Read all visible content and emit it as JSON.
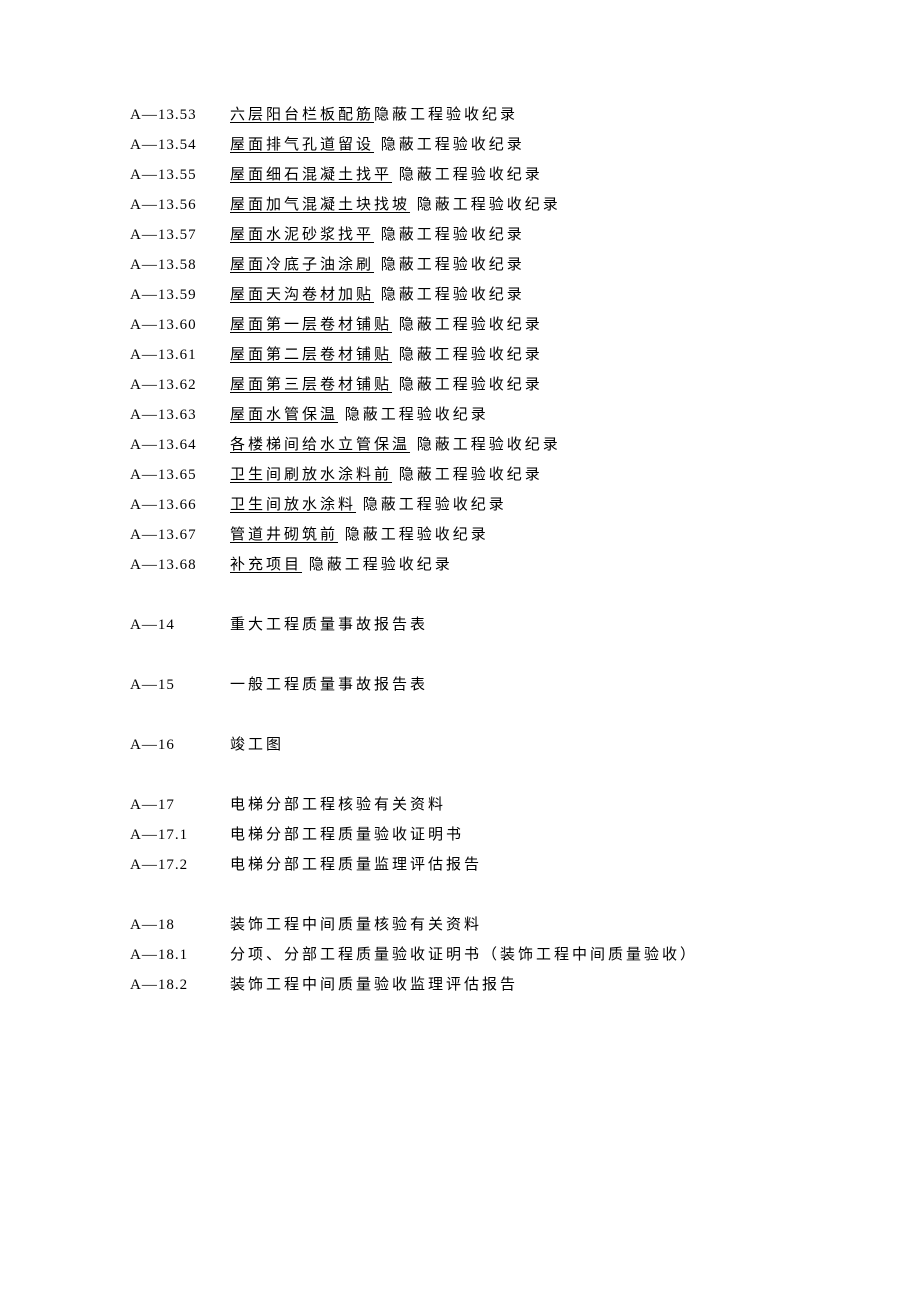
{
  "suffix": " 隐蔽工程验收纪录",
  "suffix_nospace": "隐蔽工程验收纪录",
  "items13": [
    {
      "code": "A—13.53",
      "underlined": "六层阳台栏板配筋",
      "suffixKey": "suffix_nospace"
    },
    {
      "code": "A—13.54",
      "underlined": "屋面排气孔道留设",
      "suffixKey": "suffix"
    },
    {
      "code": "A—13.55",
      "underlined": "屋面细石混凝土找平",
      "suffixKey": "suffix"
    },
    {
      "code": "A—13.56",
      "underlined": "屋面加气混凝土块找坡",
      "suffixKey": "suffix"
    },
    {
      "code": "A—13.57",
      "underlined": "屋面水泥砂浆找平",
      "suffixKey": "suffix"
    },
    {
      "code": "A—13.58",
      "underlined": "屋面冷底子油涂刷",
      "suffixKey": "suffix"
    },
    {
      "code": "A—13.59",
      "underlined": "屋面天沟卷材加贴",
      "suffixKey": "suffix"
    },
    {
      "code": "A—13.60",
      "underlined": "屋面第一层卷材铺贴",
      "suffixKey": "suffix"
    },
    {
      "code": "A—13.61",
      "underlined": "屋面第二层卷材铺贴",
      "suffixKey": "suffix"
    },
    {
      "code": "A—13.62",
      "underlined": "屋面第三层卷材铺贴",
      "suffixKey": "suffix"
    },
    {
      "code": "A—13.63",
      "underlined": "屋面水管保温",
      "suffixKey": "suffix"
    },
    {
      "code": "A—13.64",
      "underlined": "各楼梯间给水立管保温",
      "suffixKey": "suffix"
    },
    {
      "code": "A—13.65",
      "underlined": "卫生间刷放水涂料前",
      "suffixKey": "suffix"
    },
    {
      "code": "A—13.66",
      "underlined": "卫生间放水涂料",
      "suffixKey": "suffix"
    },
    {
      "code": "A—13.67",
      "underlined": "管道井砌筑前",
      "suffixKey": "suffix"
    },
    {
      "code": "A—13.68",
      "underlined": "补充项目",
      "suffixKey": "suffix"
    }
  ],
  "section14": {
    "code": "A—14",
    "text": "重大工程质量事故报告表"
  },
  "section15": {
    "code": "A—15",
    "text": "一般工程质量事故报告表"
  },
  "section16": {
    "code": "A—16",
    "text": "竣工图"
  },
  "section17": {
    "code": "A—17",
    "text": "电梯分部工程核验有关资料"
  },
  "section17_1": {
    "code": "A—17.1",
    "text": "电梯分部工程质量验收证明书"
  },
  "section17_2": {
    "code": "A—17.2",
    "text": "电梯分部工程质量监理评估报告"
  },
  "section18": {
    "code": "A—18",
    "text": " 装饰工程中间质量核验有关资料"
  },
  "section18_1": {
    "code": "A—18.1",
    "text": "分项、分部工程质量验收证明书（装饰工程中间质量验收）"
  },
  "section18_2": {
    "code": "A—18.2",
    "text": "装饰工程中间质量验收监理评估报告"
  }
}
